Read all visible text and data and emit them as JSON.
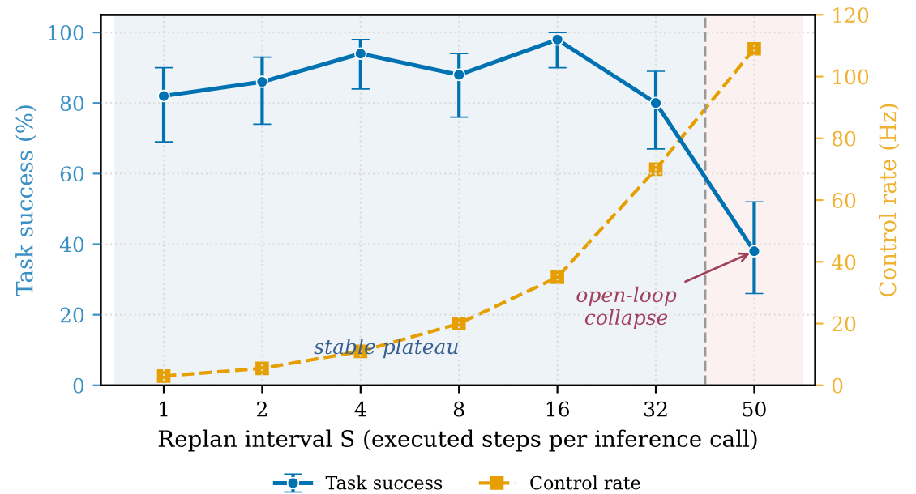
{
  "chart_data": {
    "type": "line",
    "xlabel": "Replan interval S (executed steps per inference call)",
    "ylabel": "Task success (%)",
    "y2label": "Control rate (Hz)",
    "categories": [
      "1",
      "2",
      "4",
      "8",
      "16",
      "32",
      "50"
    ],
    "ylim": [
      0,
      105
    ],
    "yticks": [
      0,
      20,
      40,
      60,
      80,
      100
    ],
    "y2lim": [
      0,
      120
    ],
    "y2ticks": [
      0,
      20,
      40,
      60,
      80,
      100,
      120
    ],
    "series": [
      {
        "name": "Task success",
        "color": "#0072b2",
        "marker": "circle",
        "line_style": "solid",
        "values": [
          82,
          86,
          94,
          88,
          98,
          80,
          38
        ],
        "errors": [
          [
            69,
            90
          ],
          [
            74,
            93
          ],
          [
            84,
            98
          ],
          [
            76,
            94
          ],
          [
            90,
            100
          ],
          [
            67,
            89
          ],
          [
            26,
            52
          ]
        ]
      },
      {
        "name": "Control rate",
        "color": "#e69f00",
        "marker": "square",
        "line_style": "dashed",
        "axis": "y2",
        "values": [
          3,
          5.5,
          11,
          20,
          35,
          70,
          109
        ]
      }
    ],
    "bands": [
      {
        "axis": "x",
        "from": "1",
        "to": "32",
        "color": "#eef3f8"
      },
      {
        "axis": "x",
        "from": "50",
        "to": "50",
        "color": "#fbf1f1"
      }
    ],
    "ref_lines": [
      {
        "axis": "x",
        "value": "50",
        "color": "#999999",
        "line_style": "dashed"
      }
    ],
    "annotations": [
      "stable plateau",
      {
        "text": "open-loop\ncollapse",
        "x": "50",
        "y": 38
      }
    ],
    "grid": true,
    "legend": "bottom"
  }
}
